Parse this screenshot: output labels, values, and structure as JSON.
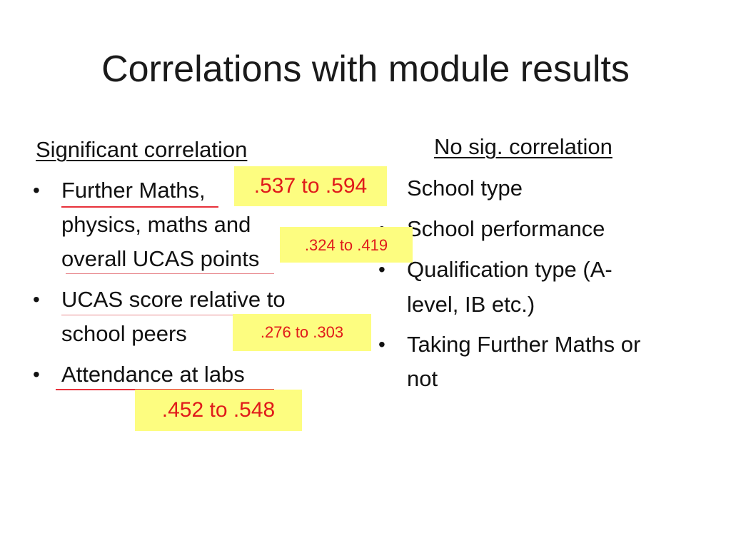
{
  "title": "Correlations with module results",
  "significant": {
    "heading": "Significant correlation",
    "lines": [
      "Further Maths,",
      "physics, maths and",
      "overall UCAS points",
      "UCAS score relative to",
      "school peers",
      "Attendance at labs"
    ],
    "callouts": [
      ".537 to .594",
      ".324 to .419",
      ".276 to .303",
      ".452 to .548"
    ]
  },
  "no_significant": {
    "heading": "No sig. correlation",
    "lines": [
      "School type",
      "School performance",
      "Qualification type (A-",
      "level, IB etc.)",
      "Taking Further Maths or",
      "not"
    ]
  },
  "colors": {
    "callout_fill": "#fdfd80",
    "callout_text": "#e01a1a",
    "underline": "#e8313b"
  }
}
